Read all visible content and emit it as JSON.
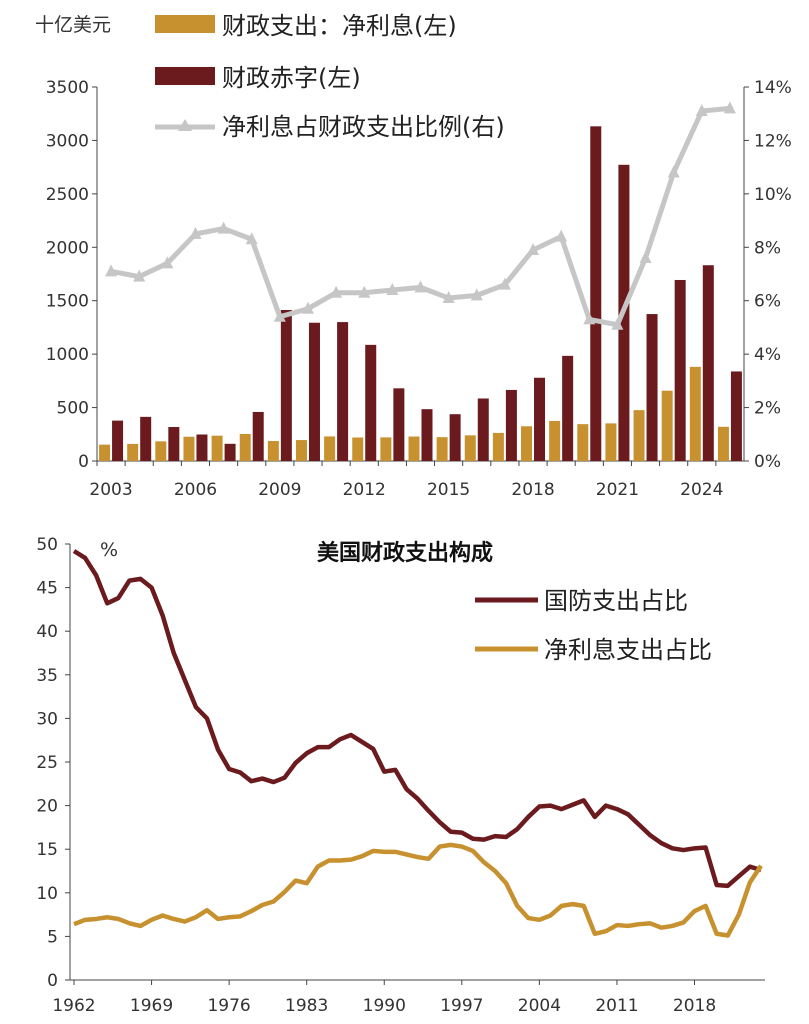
{
  "chart_data": [
    {
      "type": "bar",
      "unit_label": "十亿美元",
      "colors": {
        "interest": "#C8912F",
        "deficit": "#6B1A1E",
        "ratio": "#C6C6C6"
      },
      "x": [
        2003,
        2004,
        2005,
        2006,
        2007,
        2008,
        2009,
        2010,
        2011,
        2012,
        2013,
        2014,
        2015,
        2016,
        2017,
        2018,
        2019,
        2020,
        2021,
        2022,
        2023,
        2024,
        2025
      ],
      "x_tick_labels": [
        "2003",
        "2006",
        "2009",
        "2012",
        "2015",
        "2018",
        "2021",
        "2024"
      ],
      "series": [
        {
          "name": "财政支出：净利息(左)",
          "type": "bar",
          "axis": "left",
          "values": [
            153,
            160,
            184,
            227,
            237,
            253,
            187,
            196,
            230,
            220,
            221,
            229,
            223,
            240,
            263,
            325,
            375,
            345,
            352,
            476,
            658,
            881,
            320
          ]
        },
        {
          "name": "财政赤字(左)",
          "type": "bar",
          "axis": "left",
          "values": [
            378,
            413,
            318,
            248,
            161,
            459,
            1413,
            1294,
            1300,
            1087,
            680,
            485,
            438,
            585,
            665,
            779,
            984,
            3132,
            2772,
            1375,
            1694,
            1832,
            838
          ]
        },
        {
          "name": "净利息占财政支出比例(右)",
          "type": "line",
          "axis": "right",
          "values": [
            7.1,
            6.9,
            7.4,
            8.5,
            8.7,
            8.3,
            5.4,
            5.7,
            6.3,
            6.3,
            6.4,
            6.5,
            6.1,
            6.2,
            6.6,
            7.9,
            8.4,
            5.3,
            5.1,
            7.6,
            10.8,
            13.1,
            13.2
          ]
        }
      ],
      "y_left": {
        "ylim": [
          0,
          3500
        ],
        "ticks": [
          "0",
          "500",
          "1000",
          "1500",
          "2000",
          "2500",
          "3000",
          "3500"
        ]
      },
      "y_right": {
        "ylim": [
          0,
          14
        ],
        "ticks": [
          "0%",
          "2%",
          "4%",
          "6%",
          "8%",
          "10%",
          "12%",
          "14%"
        ]
      }
    },
    {
      "type": "line",
      "title": "美国财政支出构成",
      "unit_label": "%",
      "colors": {
        "defense": "#6B1A1E",
        "interest": "#C8912F"
      },
      "x_tick_labels": [
        "1962",
        "1969",
        "1976",
        "1983",
        "1990",
        "1997",
        "2004",
        "2011",
        "2018"
      ],
      "ylim": [
        0,
        50
      ],
      "y_ticks": [
        "0",
        "5",
        "10",
        "15",
        "20",
        "25",
        "30",
        "35",
        "40",
        "45",
        "50"
      ],
      "series": [
        {
          "name": "国防支出占比",
          "x": [
            1962,
            1963,
            1964,
            1965,
            1966,
            1967,
            1968,
            1969,
            1970,
            1971,
            1972,
            1973,
            1974,
            1975,
            1976,
            1977,
            1978,
            1979,
            1980,
            1981,
            1982,
            1983,
            1984,
            1985,
            1986,
            1987,
            1988,
            1989,
            1990,
            1991,
            1992,
            1993,
            1994,
            1995,
            1996,
            1997,
            1998,
            1999,
            2000,
            2001,
            2002,
            2003,
            2004,
            2005,
            2006,
            2007,
            2008,
            2009,
            2010,
            2011,
            2012,
            2013,
            2014,
            2015,
            2016,
            2017,
            2018,
            2019,
            2020,
            2021,
            2022,
            2023,
            2024
          ],
          "values": [
            49.2,
            48.4,
            46.4,
            43.2,
            43.8,
            45.8,
            46.0,
            45.0,
            41.8,
            37.5,
            34.4,
            31.3,
            30.0,
            26.4,
            24.2,
            23.8,
            22.8,
            23.1,
            22.7,
            23.2,
            24.9,
            26.0,
            26.7,
            26.7,
            27.6,
            28.1,
            27.3,
            26.5,
            23.9,
            24.1,
            21.9,
            20.8,
            19.4,
            18.1,
            17.0,
            16.9,
            16.2,
            16.1,
            16.5,
            16.4,
            17.3,
            18.7,
            19.9,
            20.0,
            19.6,
            20.1,
            20.6,
            18.7,
            20.0,
            19.6,
            19.0,
            17.8,
            16.6,
            15.7,
            15.1,
            14.9,
            15.1,
            15.2,
            10.9,
            10.8,
            11.9,
            13.0,
            12.6
          ]
        },
        {
          "name": "净利息支出占比",
          "x": [
            1962,
            1963,
            1964,
            1965,
            1966,
            1967,
            1968,
            1969,
            1970,
            1971,
            1972,
            1973,
            1974,
            1975,
            1976,
            1977,
            1978,
            1979,
            1980,
            1981,
            1982,
            1983,
            1984,
            1985,
            1986,
            1987,
            1988,
            1989,
            1990,
            1991,
            1992,
            1993,
            1994,
            1995,
            1996,
            1997,
            1998,
            1999,
            2000,
            2001,
            2002,
            2003,
            2004,
            2005,
            2006,
            2007,
            2008,
            2009,
            2010,
            2011,
            2012,
            2013,
            2014,
            2015,
            2016,
            2017,
            2018,
            2019,
            2020,
            2021,
            2022,
            2023,
            2024
          ],
          "values": [
            6.4,
            6.9,
            7.0,
            7.2,
            7.0,
            6.5,
            6.2,
            6.9,
            7.4,
            7.0,
            6.7,
            7.2,
            8.0,
            7.0,
            7.2,
            7.3,
            7.9,
            8.6,
            9.0,
            10.1,
            11.4,
            11.1,
            13.0,
            13.7,
            13.7,
            13.8,
            14.2,
            14.8,
            14.7,
            14.7,
            14.4,
            14.1,
            13.9,
            15.3,
            15.5,
            15.3,
            14.8,
            13.5,
            12.5,
            11.1,
            8.5,
            7.1,
            6.9,
            7.4,
            8.5,
            8.7,
            8.5,
            5.3,
            5.6,
            6.3,
            6.2,
            6.4,
            6.5,
            6.0,
            6.2,
            6.6,
            7.9,
            8.5,
            5.3,
            5.1,
            7.5,
            11.2,
            13.1
          ]
        }
      ]
    }
  ]
}
